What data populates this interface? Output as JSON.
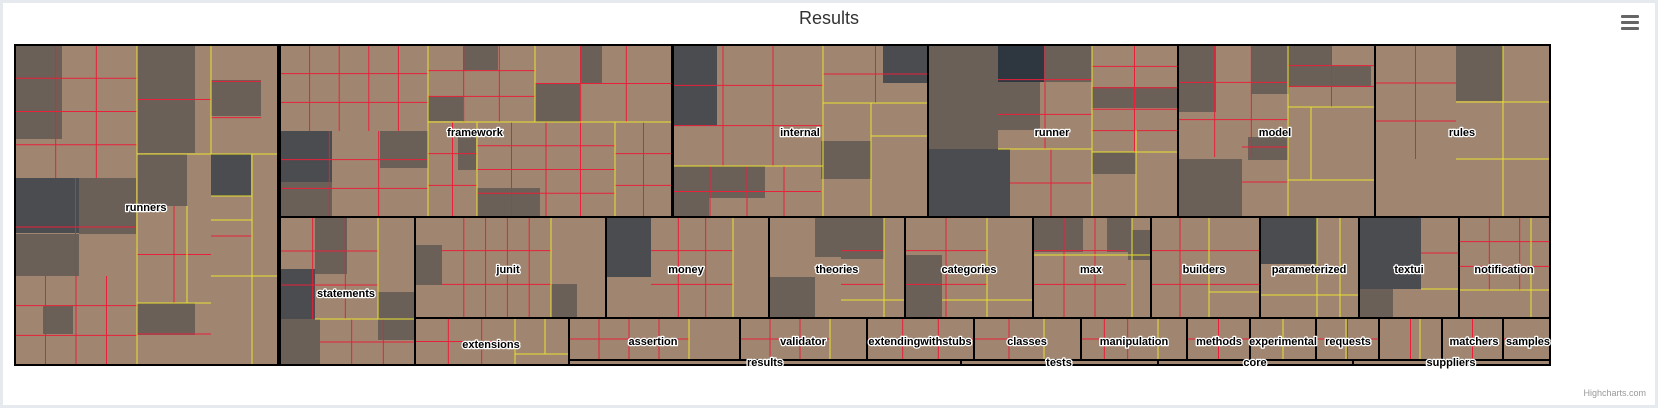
{
  "title": "Results",
  "credits": "Highcharts.com",
  "menu_icon": "hamburger-menu-icon",
  "chart_data": {
    "type": "treemap",
    "title": "Results",
    "colors": {
      "default_cell": "#a08670",
      "gray_cell": "#6b6058",
      "dark_cell": "#4a4c50",
      "darkest_cell": "#2e3640",
      "leaf_border": "#e8203a",
      "group_border": "#e8e030",
      "package_border": "#000000"
    },
    "packages": [
      {
        "name": "runners",
        "value": 15.0
      },
      {
        "name": "framework",
        "value": 12.3
      },
      {
        "name": "internal",
        "value": 7.6
      },
      {
        "name": "runner",
        "value": 7.2
      },
      {
        "name": "model",
        "value": 5.7
      },
      {
        "name": "rules",
        "value": 5.1
      },
      {
        "name": "statements",
        "value": 2.8
      },
      {
        "name": "junit",
        "value": 3.1
      },
      {
        "name": "money",
        "value": 2.6
      },
      {
        "name": "theories",
        "value": 2.2
      },
      {
        "name": "categories",
        "value": 2.1
      },
      {
        "name": "max",
        "value": 1.9
      },
      {
        "name": "builders",
        "value": 1.8
      },
      {
        "name": "parameterized",
        "value": 1.6
      },
      {
        "name": "textui",
        "value": 1.6
      },
      {
        "name": "notification",
        "value": 1.5
      },
      {
        "name": "extensions",
        "value": 1.4
      },
      {
        "name": "assertion",
        "value": 1.7
      },
      {
        "name": "validator",
        "value": 1.3
      },
      {
        "name": "extendingwithstubs",
        "value": 1.1
      },
      {
        "name": "classes",
        "value": 1.1
      },
      {
        "name": "manipulation",
        "value": 1.1
      },
      {
        "name": "methods",
        "value": 0.7
      },
      {
        "name": "experimental",
        "value": 0.7
      },
      {
        "name": "requests",
        "value": 0.7
      },
      {
        "name": "matchers",
        "value": 0.6
      },
      {
        "name": "samples",
        "value": 0.5
      },
      {
        "name": "results",
        "value": 0.3
      },
      {
        "name": "tests",
        "value": 0.3
      },
      {
        "name": "core",
        "value": 0.2
      },
      {
        "name": "suppliers",
        "value": 0.2
      }
    ]
  }
}
